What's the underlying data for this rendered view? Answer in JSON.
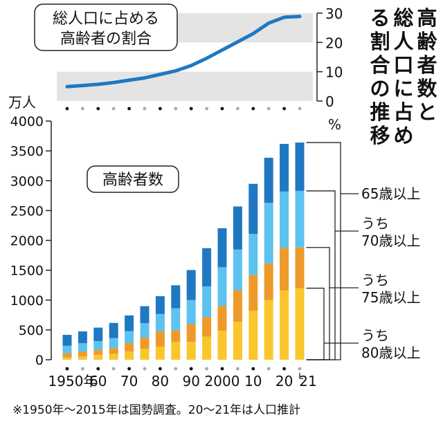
{
  "chart_data": [
    {
      "type": "line",
      "title": "総人口に占める高齢者の割合",
      "unit": "%",
      "ylim": [
        0,
        30
      ],
      "yticks": [
        "30",
        "20",
        "10",
        "0"
      ],
      "x": [
        1950,
        1955,
        1960,
        1965,
        1970,
        1975,
        1980,
        1985,
        1990,
        1995,
        2000,
        2005,
        2010,
        2015,
        2020,
        2021
      ],
      "values": [
        4.9,
        5.3,
        5.7,
        6.3,
        7.1,
        7.9,
        9.1,
        10.3,
        12.1,
        14.6,
        17.4,
        20.2,
        23.0,
        26.6,
        28.6,
        28.9
      ],
      "grid": "shaded bands 10–20 and 20–30"
    },
    {
      "type": "stacked-bar",
      "title": "高齢者数",
      "unit": "万人",
      "ylim": [
        0,
        4000
      ],
      "yticks": [
        "4000",
        "3500",
        "3000",
        "2500",
        "2000",
        "1500",
        "1000",
        "500",
        "0"
      ],
      "categories": [
        1950,
        1955,
        1960,
        1965,
        1970,
        1975,
        1980,
        1985,
        1990,
        1995,
        2000,
        2005,
        2010,
        2015,
        2020,
        2021
      ],
      "xtick_labels": [
        "1950年",
        "60",
        "70",
        "80",
        "90",
        "2000",
        "10",
        "20",
        "21"
      ],
      "series": [
        {
          "name": "うち80歳以上",
          "color": "#f9c72c",
          "values": [
            37,
            54,
            84,
            99,
            136,
            181,
            221,
            299,
            299,
            389,
            486,
            637,
            820,
            1002,
            1160,
            1199
          ]
        },
        {
          "name": "うち75歳以上",
          "color": "#ee9a2a",
          "values": [
            69,
            79,
            79,
            95,
            143,
            189,
            252,
            192,
            298,
            326,
            415,
            527,
            599,
            611,
            715,
            682
          ]
        },
        {
          "name": "うち70歳以上",
          "color": "#5cc3ef",
          "values": [
            128,
            146,
            150,
            169,
            201,
            243,
            294,
            372,
            404,
            515,
            649,
            683,
            691,
            1016,
            944,
            949
          ]
        },
        {
          "name": "65歳以上",
          "color": "#1f78c1",
          "values": [
            183,
            196,
            225,
            254,
            262,
            285,
            298,
            385,
            502,
            640,
            654,
            722,
            838,
            756,
            798,
            810
          ]
        }
      ],
      "totals": [
        417,
        475,
        538,
        617,
        742,
        898,
        1065,
        1248,
        1503,
        1870,
        2204,
        2569,
        2948,
        3385,
        3617,
        3640
      ]
    }
  ],
  "header": {
    "title": "高齢者数と総人口に占める割合の推移"
  },
  "labels": {
    "pct_title_line1": "総人口に占める",
    "pct_title_line2": "高齢者の割合",
    "pct_unit": "%",
    "count_unit": "万人",
    "count_title": "高齢者数",
    "legend_65": "65歳以上",
    "legend_70_a": "うち",
    "legend_70_b": "70歳以上",
    "legend_75_a": "うち",
    "legend_75_b": "75歳以上",
    "legend_80_a": "うち",
    "legend_80_b": "80歳以上"
  },
  "footnote": "※1950年〜2015年は国勢調査。20〜21年は人口推計"
}
